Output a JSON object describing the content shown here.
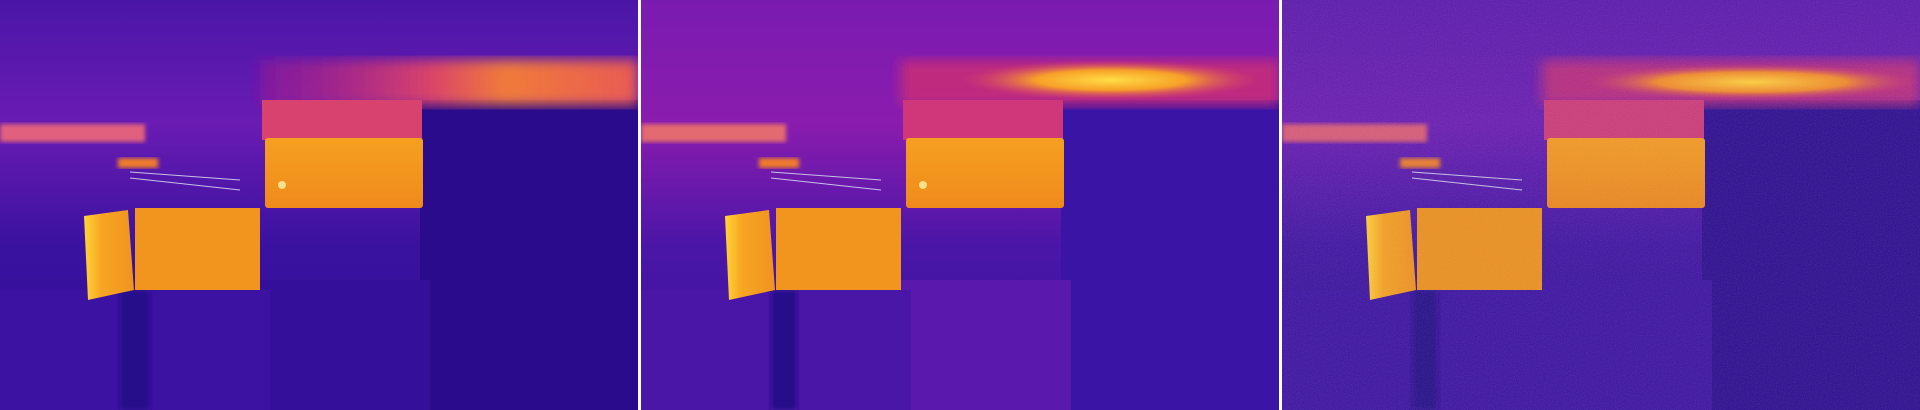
{
  "image": {
    "description_free": true,
    "palette": {
      "cold": "#2c0a8e",
      "cool": "#3f14a6",
      "mid": "#7a1bb0",
      "warm": "#c2187c",
      "hot": "#f07a18",
      "hottest": "#ffd23a",
      "background": "#ffffff"
    },
    "panels": [
      {
        "id": "left",
        "noise": "low"
      },
      {
        "id": "middle",
        "noise": "low"
      },
      {
        "id": "right",
        "noise": "high"
      }
    ]
  }
}
